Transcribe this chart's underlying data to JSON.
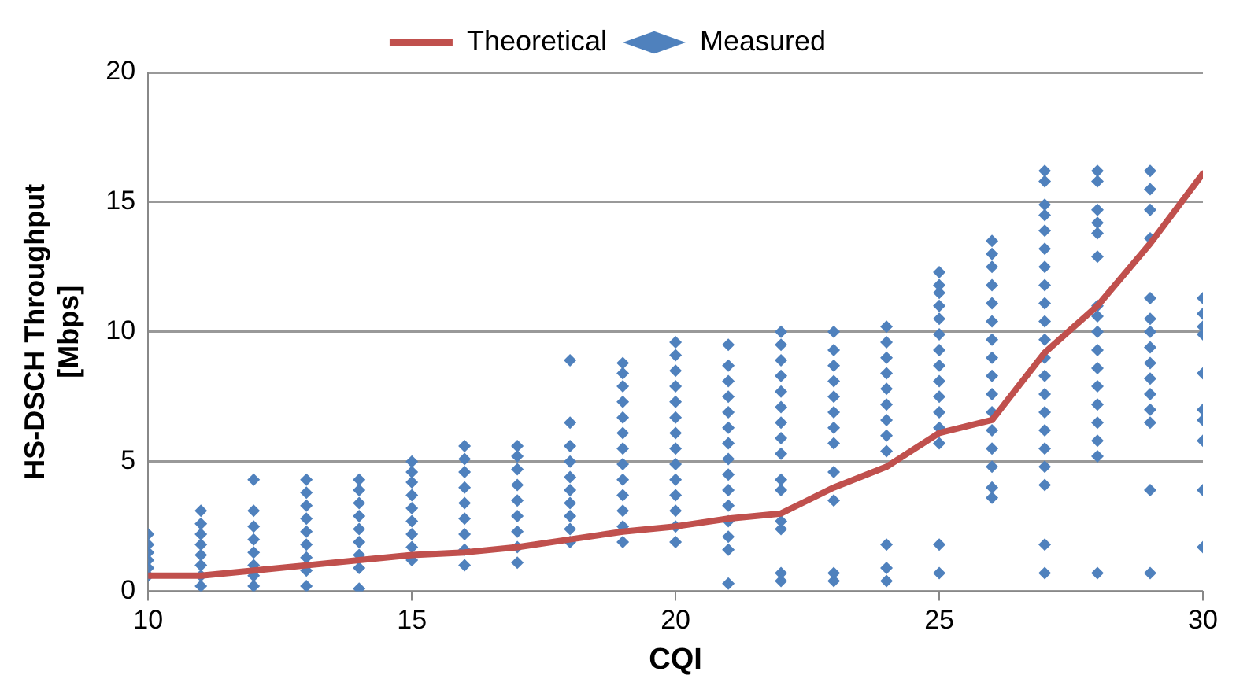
{
  "chart_data": {
    "type": "scatter",
    "xlabel": "CQI",
    "ylabel": "HS-DSCH Throughput [Mbps]",
    "xlim": [
      10,
      30
    ],
    "xticks": [
      10,
      15,
      20,
      25,
      30
    ],
    "ylim": [
      0,
      20
    ],
    "yticks": [
      0,
      5,
      10,
      15,
      20
    ],
    "grid": "y",
    "legend": "top",
    "series": [
      {
        "name": "Theoretical",
        "type": "line",
        "color": "#c0504d",
        "marker": "none",
        "line_style": "solid",
        "x": [
          10,
          11,
          12,
          13,
          14,
          15,
          16,
          17,
          18,
          19,
          20,
          21,
          22,
          23,
          24,
          25,
          26,
          27,
          28,
          29,
          30
        ],
        "values": [
          0.6,
          0.6,
          0.8,
          1.0,
          1.2,
          1.4,
          1.5,
          1.7,
          2.0,
          2.3,
          2.5,
          2.8,
          3.0,
          4.0,
          4.8,
          6.1,
          6.6,
          9.2,
          11.0,
          13.4,
          16.1
        ]
      },
      {
        "name": "Measured",
        "color": "#4f81bd",
        "marker": "diamond",
        "x": [
          10,
          10,
          10,
          10,
          10,
          10,
          11,
          11,
          11,
          11,
          11,
          11,
          11,
          11,
          12,
          12,
          12,
          12,
          12,
          12,
          12,
          12,
          13,
          13,
          13,
          13,
          13,
          13,
          13,
          13,
          13,
          14,
          14,
          14,
          14,
          14,
          14,
          14,
          14,
          14,
          15,
          15,
          15,
          15,
          15,
          15,
          15,
          15,
          15,
          16,
          16,
          16,
          16,
          16,
          16,
          16,
          16,
          16,
          17,
          17,
          17,
          17,
          17,
          17,
          17,
          17,
          17,
          18,
          18,
          18,
          18,
          18,
          18,
          18,
          18,
          18,
          18,
          19,
          19,
          19,
          19,
          19,
          19,
          19,
          19,
          19,
          19,
          19,
          19,
          19,
          20,
          20,
          20,
          20,
          20,
          20,
          20,
          20,
          20,
          20,
          20,
          20,
          20,
          20,
          21,
          21,
          21,
          21,
          21,
          21,
          21,
          21,
          21,
          21,
          21,
          21,
          21,
          21,
          21,
          22,
          22,
          22,
          22,
          22,
          22,
          22,
          22,
          22,
          22,
          22,
          22,
          22,
          22,
          22,
          23,
          23,
          23,
          23,
          23,
          23,
          23,
          23,
          23,
          23,
          23,
          23,
          24,
          24,
          24,
          24,
          24,
          24,
          24,
          24,
          24,
          24,
          24,
          24,
          25,
          25,
          25,
          25,
          25,
          25,
          25,
          25,
          25,
          25,
          25,
          25,
          25,
          25,
          25,
          26,
          26,
          26,
          26,
          26,
          26,
          26,
          26,
          26,
          26,
          26,
          26,
          26,
          26,
          26,
          26,
          27,
          27,
          27,
          27,
          27,
          27,
          27,
          27,
          27,
          27,
          27,
          27,
          27,
          27,
          27,
          27,
          27,
          27,
          27,
          27,
          27,
          28,
          28,
          28,
          28,
          28,
          28,
          28,
          28,
          28,
          28,
          28,
          28,
          28,
          28,
          28,
          28,
          28,
          29,
          29,
          29,
          29,
          29,
          29,
          29,
          29,
          29,
          29,
          29,
          29,
          29,
          29,
          29,
          30,
          30,
          30,
          30,
          30,
          30,
          30,
          30,
          30,
          30
        ],
        "values": [
          0.6,
          0.9,
          1.2,
          1.5,
          1.8,
          2.2,
          0.2,
          0.6,
          1.0,
          1.4,
          1.8,
          2.2,
          2.6,
          3.1,
          0.2,
          0.6,
          1.0,
          1.5,
          2.0,
          2.5,
          3.1,
          4.3,
          0.2,
          0.8,
          1.3,
          1.8,
          2.3,
          2.8,
          3.3,
          3.8,
          4.3,
          0.1,
          0.9,
          1.4,
          1.9,
          2.4,
          2.9,
          3.4,
          3.9,
          4.3,
          1.2,
          1.7,
          2.2,
          2.7,
          3.2,
          3.7,
          4.2,
          4.6,
          5.0,
          1.0,
          1.6,
          2.2,
          2.8,
          3.4,
          4.0,
          4.6,
          5.1,
          5.6,
          1.1,
          1.7,
          2.3,
          2.9,
          3.5,
          4.1,
          4.7,
          5.2,
          5.6,
          1.9,
          2.4,
          2.9,
          3.4,
          3.9,
          4.4,
          5.0,
          5.6,
          6.5,
          8.9,
          1.9,
          2.5,
          3.1,
          3.7,
          4.3,
          4.9,
          5.5,
          6.1,
          6.7,
          7.3,
          7.9,
          8.4,
          8.8,
          1.9,
          2.5,
          3.1,
          3.7,
          4.3,
          4.9,
          5.5,
          6.1,
          6.7,
          7.3,
          7.9,
          8.5,
          9.1,
          9.6,
          0.3,
          1.6,
          2.1,
          2.7,
          3.3,
          3.9,
          4.5,
          5.1,
          5.7,
          6.3,
          6.9,
          7.5,
          8.1,
          8.7,
          9.5,
          0.4,
          0.7,
          2.4,
          2.7,
          3.9,
          4.3,
          5.3,
          5.9,
          6.5,
          7.1,
          7.7,
          8.3,
          8.9,
          9.5,
          10.0,
          0.4,
          0.7,
          3.5,
          4.6,
          5.7,
          6.3,
          6.9,
          7.5,
          8.1,
          8.7,
          9.3,
          10.0,
          0.4,
          0.9,
          1.8,
          5.4,
          6.0,
          6.6,
          7.2,
          7.8,
          8.4,
          9.0,
          9.6,
          10.2,
          0.7,
          1.8,
          5.7,
          6.3,
          6.9,
          7.5,
          8.1,
          8.7,
          9.3,
          9.9,
          10.5,
          11.0,
          11.5,
          11.8,
          12.3,
          3.6,
          4.0,
          4.8,
          5.5,
          6.2,
          6.9,
          7.6,
          8.3,
          9.0,
          9.7,
          10.4,
          11.1,
          11.8,
          12.5,
          13.0,
          13.5,
          0.7,
          1.8,
          4.1,
          4.8,
          5.5,
          6.2,
          6.9,
          7.6,
          8.3,
          9.0,
          9.7,
          10.4,
          11.1,
          11.8,
          12.5,
          13.2,
          13.9,
          14.5,
          14.9,
          15.8,
          16.2,
          0.7,
          5.2,
          5.8,
          6.5,
          7.2,
          7.9,
          8.6,
          9.3,
          10.0,
          10.6,
          11.0,
          12.9,
          13.8,
          14.2,
          14.7,
          15.8,
          16.2,
          0.7,
          3.9,
          6.5,
          7.0,
          7.6,
          8.2,
          8.8,
          9.4,
          10.0,
          10.5,
          11.3,
          13.6,
          14.7,
          15.5,
          16.2,
          1.7,
          3.9,
          5.8,
          6.6,
          7.0,
          8.4,
          9.9,
          10.2,
          10.7,
          11.3
        ]
      }
    ]
  }
}
